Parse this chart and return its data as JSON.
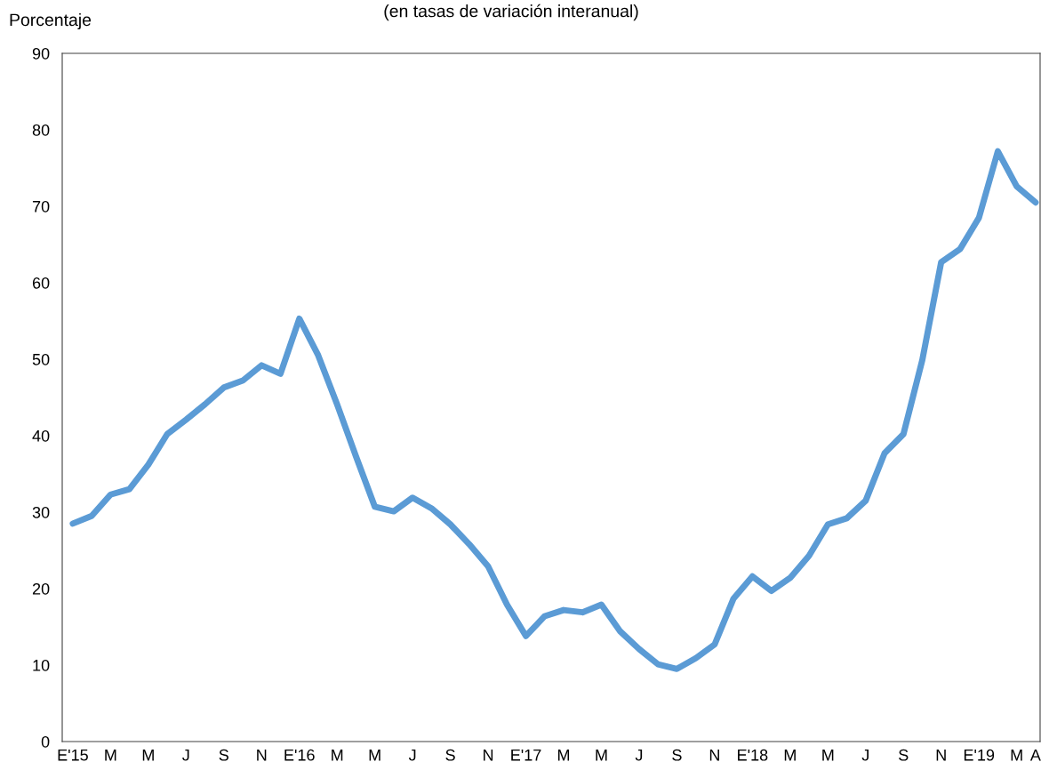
{
  "chart_data": {
    "type": "line",
    "title": "(en tasas de variación interanual)",
    "ylabel": "Porcentaje",
    "categories": [
      "E'15",
      null,
      "M",
      null,
      "M",
      null,
      "J",
      null,
      "S",
      null,
      "N",
      null,
      "E'16",
      null,
      "M",
      null,
      "M",
      null,
      "J",
      null,
      "S",
      null,
      "N",
      null,
      "E'17",
      null,
      "M",
      null,
      "M",
      null,
      "J",
      null,
      "S",
      null,
      "N",
      null,
      "E'18",
      null,
      "M",
      null,
      "M",
      null,
      "J",
      null,
      "S",
      null,
      "N",
      null,
      "E'19",
      null,
      "M",
      "A"
    ],
    "series": [
      {
        "color": "#5b9bd5",
        "values": [
          28.5,
          29.5,
          32.3,
          33.0,
          36.2,
          40.2,
          42.1,
          44.1,
          46.3,
          47.2,
          49.2,
          48.1,
          55.3,
          50.5,
          44.1,
          37.3,
          30.7,
          30.1,
          31.9,
          30.5,
          28.4,
          25.8,
          22.9,
          17.9,
          13.8,
          16.4,
          17.2,
          16.9,
          17.9,
          14.4,
          12.1,
          10.1,
          9.5,
          10.9,
          12.7,
          18.7,
          21.6,
          19.7,
          21.4,
          24.3,
          28.4,
          29.2,
          31.5,
          37.7,
          40.2,
          49.9,
          62.7,
          64.4,
          68.5,
          77.2,
          72.6,
          70.5
        ]
      }
    ],
    "ylim": [
      0,
      90
    ],
    "yticks": [
      0,
      10,
      20,
      30,
      40,
      50,
      60,
      70,
      80,
      90
    ],
    "grid": false,
    "marker": "none",
    "line_style": "solid"
  }
}
